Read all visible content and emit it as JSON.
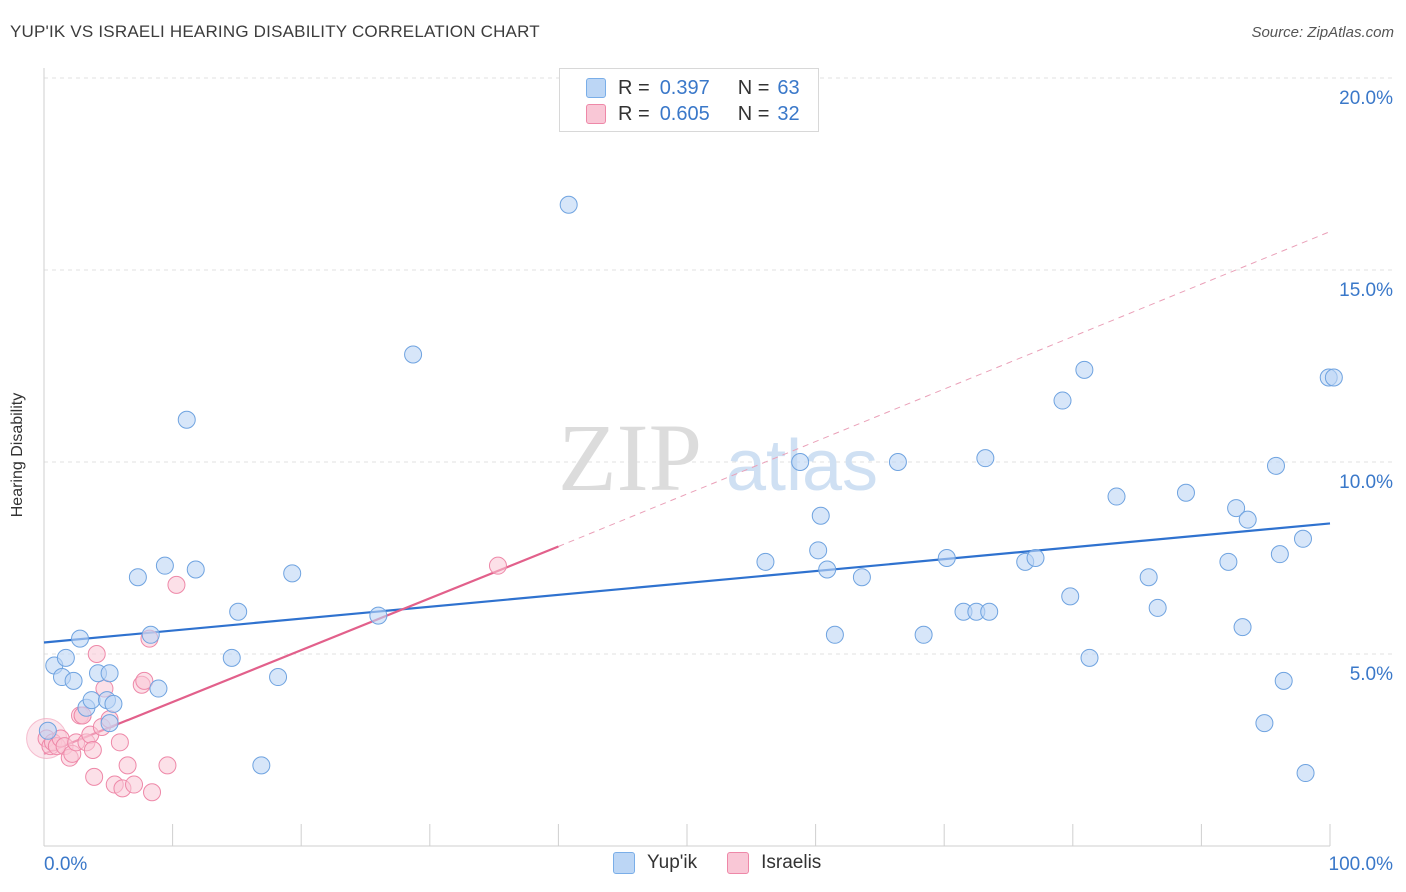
{
  "title": "YUP'IK VS ISRAELI HEARING DISABILITY CORRELATION CHART",
  "source": "Source: ZipAtlas.com",
  "watermark": {
    "zip": "ZIP",
    "atlas": "atlas"
  },
  "legend": {
    "rows": [
      {
        "r_label": "R =",
        "r_value": "0.397",
        "n_label": "N =",
        "n_value": "63",
        "color": "#7aaee8",
        "fill": "#bcd6f5"
      },
      {
        "r_label": "R =",
        "r_value": "0.605",
        "n_label": "N =",
        "n_value": "32",
        "color": "#ee88a8",
        "fill": "#f9c7d6"
      }
    ]
  },
  "bottom_legend": [
    {
      "label": "Yup'ik",
      "color": "#7aaee8",
      "fill": "#bcd6f5"
    },
    {
      "label": "Israelis",
      "color": "#ee88a8",
      "fill": "#f9c7d6"
    }
  ],
  "chart_data": {
    "type": "scatter",
    "title": "YUP'IK VS ISRAELI HEARING DISABILITY CORRELATION CHART",
    "xlabel": "",
    "ylabel": "Hearing Disability",
    "xlim": [
      0,
      100
    ],
    "ylim": [
      0,
      20
    ],
    "x_tick_labels": [
      "0.0%",
      "100.0%"
    ],
    "y_ticks": [
      5,
      10,
      15,
      20
    ],
    "y_tick_labels": [
      "5.0%",
      "10.0%",
      "15.0%",
      "20.0%"
    ],
    "series": [
      {
        "name": "Yup'ik",
        "color": "#3a78c9",
        "fill": "#bcd6f5",
        "trend": {
          "x0": 0,
          "y0": 5.3,
          "x1": 100,
          "y1": 8.4
        },
        "points": [
          [
            0.3,
            3.0
          ],
          [
            0.8,
            4.7
          ],
          [
            1.4,
            4.4
          ],
          [
            1.7,
            4.9
          ],
          [
            2.3,
            4.3
          ],
          [
            2.8,
            5.4
          ],
          [
            3.3,
            3.6
          ],
          [
            3.7,
            3.8
          ],
          [
            4.2,
            4.5
          ],
          [
            4.9,
            3.8
          ],
          [
            5.1,
            4.5
          ],
          [
            5.4,
            3.7
          ],
          [
            5.1,
            3.2
          ],
          [
            7.3,
            7.0
          ],
          [
            8.3,
            5.5
          ],
          [
            8.9,
            4.1
          ],
          [
            9.4,
            7.3
          ],
          [
            11.1,
            11.1
          ],
          [
            11.8,
            7.2
          ],
          [
            14.6,
            4.9
          ],
          [
            15.1,
            6.1
          ],
          [
            16.9,
            2.1
          ],
          [
            18.2,
            4.4
          ],
          [
            19.3,
            7.1
          ],
          [
            26.0,
            6.0
          ],
          [
            28.7,
            12.8
          ],
          [
            40.8,
            16.7
          ],
          [
            56.1,
            7.4
          ],
          [
            58.8,
            10.0
          ],
          [
            60.2,
            7.7
          ],
          [
            60.4,
            8.6
          ],
          [
            60.9,
            7.2
          ],
          [
            61.5,
            5.5
          ],
          [
            63.6,
            7.0
          ],
          [
            66.4,
            10.0
          ],
          [
            68.4,
            5.5
          ],
          [
            70.2,
            7.5
          ],
          [
            71.5,
            6.1
          ],
          [
            72.5,
            6.1
          ],
          [
            73.2,
            10.1
          ],
          [
            73.5,
            6.1
          ],
          [
            76.3,
            7.4
          ],
          [
            77.1,
            7.5
          ],
          [
            79.2,
            11.6
          ],
          [
            79.8,
            6.5
          ],
          [
            80.9,
            12.4
          ],
          [
            81.3,
            4.9
          ],
          [
            83.4,
            9.1
          ],
          [
            85.9,
            7.0
          ],
          [
            86.6,
            6.2
          ],
          [
            88.8,
            9.2
          ],
          [
            92.1,
            7.4
          ],
          [
            92.7,
            8.8
          ],
          [
            93.2,
            5.7
          ],
          [
            93.6,
            8.5
          ],
          [
            94.9,
            3.2
          ],
          [
            95.8,
            9.9
          ],
          [
            96.1,
            7.6
          ],
          [
            96.4,
            4.3
          ],
          [
            97.9,
            8.0
          ],
          [
            98.1,
            1.9
          ],
          [
            99.9,
            12.2
          ],
          [
            100.3,
            12.2
          ]
        ]
      },
      {
        "name": "Israelis",
        "color": "#e86791",
        "fill": "#f9c7d6",
        "trend": {
          "x0": 0,
          "y0": 2.4,
          "x1": 40,
          "y1": 7.8
        },
        "trend_extension": {
          "x0": 40,
          "y0": 7.8,
          "x1": 100,
          "y1": 16.0
        },
        "points": [
          [
            0.2,
            2.8
          ],
          [
            0.5,
            2.6
          ],
          [
            0.7,
            2.7
          ],
          [
            1.0,
            2.6
          ],
          [
            1.3,
            2.8
          ],
          [
            1.6,
            2.6
          ],
          [
            2.0,
            2.3
          ],
          [
            2.2,
            2.4
          ],
          [
            2.5,
            2.7
          ],
          [
            2.8,
            3.4
          ],
          [
            3.0,
            3.4
          ],
          [
            3.3,
            2.7
          ],
          [
            3.6,
            2.9
          ],
          [
            3.8,
            2.5
          ],
          [
            3.9,
            1.8
          ],
          [
            4.1,
            5.0
          ],
          [
            4.5,
            3.1
          ],
          [
            4.7,
            4.1
          ],
          [
            5.1,
            3.3
          ],
          [
            5.5,
            1.6
          ],
          [
            5.9,
            2.7
          ],
          [
            6.1,
            1.5
          ],
          [
            6.5,
            2.1
          ],
          [
            7.0,
            1.6
          ],
          [
            7.6,
            4.2
          ],
          [
            7.8,
            4.3
          ],
          [
            8.2,
            5.4
          ],
          [
            8.4,
            1.4
          ],
          [
            9.6,
            2.1
          ],
          [
            10.3,
            6.8
          ],
          [
            35.3,
            7.3
          ],
          [
            3.0,
            3.4
          ]
        ]
      }
    ]
  }
}
